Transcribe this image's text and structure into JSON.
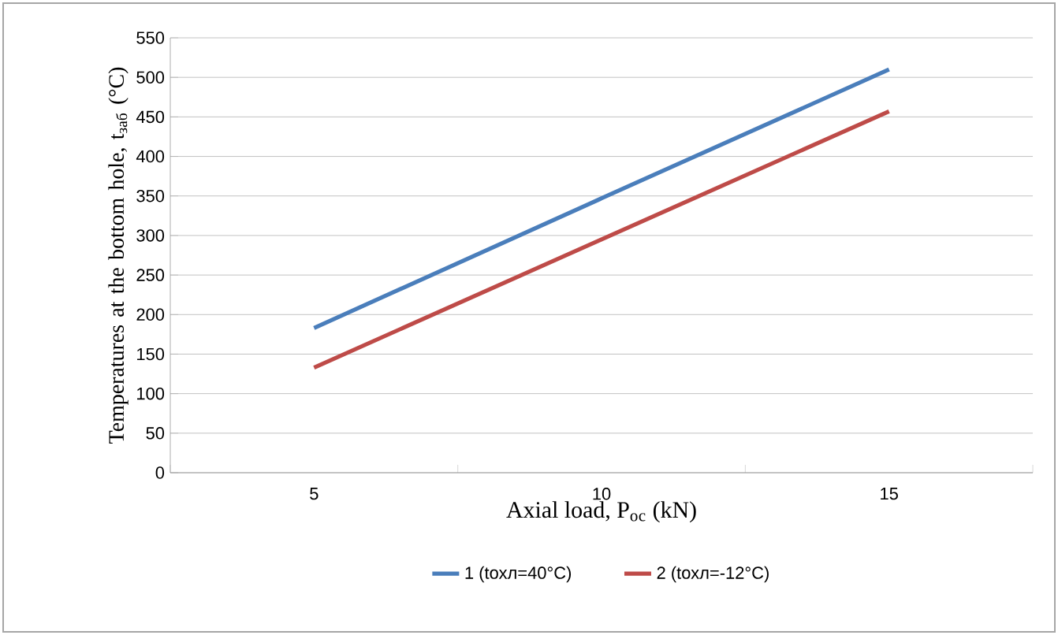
{
  "chart_data": {
    "type": "line",
    "xlabel": "Axial load, P$_{ос}$ (kN)",
    "ylabel": "Temperatures at the bottom hole, t$_{заб}$ (°C)",
    "categories": [
      "5",
      "10",
      "15"
    ],
    "series": [
      {
        "name": "1 (tохл=40°C)",
        "color": "#4a7ebb",
        "values": [
          183,
          347,
          510
        ]
      },
      {
        "name": "2 (tохл=-12°C)",
        "color": "#be4b48",
        "values": [
          133,
          295,
          457
        ]
      }
    ],
    "ylim": [
      0,
      550
    ],
    "yticks": [
      0,
      50,
      100,
      150,
      200,
      250,
      300,
      350,
      400,
      450,
      500,
      550
    ],
    "grid": "y",
    "legend": "bottom",
    "marker": "none",
    "line_style": "solid"
  }
}
